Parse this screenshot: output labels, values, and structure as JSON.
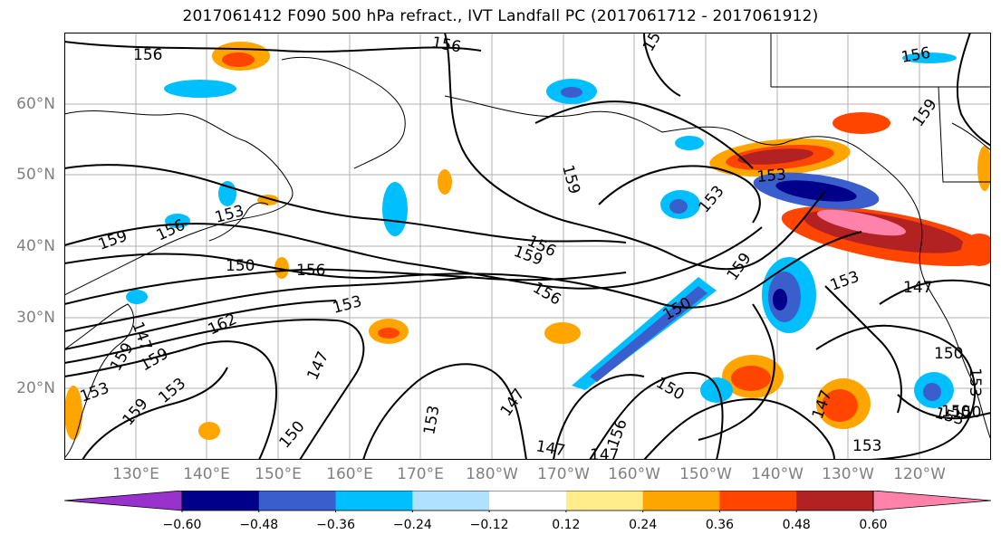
{
  "title": "2017061412 F090 500 hPa refract., IVT Landfall PC (2017061712 - 2017061912)",
  "lat_labels": [
    "60°N",
    "50°N",
    "40°N",
    "30°N",
    "20°N"
  ],
  "lon_labels": [
    "130°E",
    "140°E",
    "150°E",
    "160°E",
    "170°E",
    "180°W",
    "170°W",
    "160°W",
    "150°W",
    "140°W",
    "130°W",
    "120°W"
  ],
  "contour_labels": [
    "156",
    "156",
    "159",
    "159",
    "159",
    "156",
    "159",
    "153",
    "153",
    "156",
    "150",
    "156",
    "153",
    "162",
    "159",
    "147",
    "147",
    "159",
    "156",
    "150",
    "153",
    "153",
    "159",
    "147",
    "153",
    "147",
    "150",
    "153",
    "150",
    "147",
    "153",
    "150",
    "153",
    "159",
    "150",
    "147",
    "156",
    "153",
    "150",
    "147",
    "153",
    "156",
    "159"
  ],
  "colorbar": {
    "colors": [
      "#9932CC",
      "#00008B",
      "#3A5FCD",
      "#00BFFF",
      "#B0E2FF",
      "#FFFFFF",
      "#FFEC8B",
      "#FFA500",
      "#FF4500",
      "#B22222",
      "#FF82AB"
    ],
    "tick_labels": [
      "−0.60",
      "−0.48",
      "−0.36",
      "−0.24",
      "−0.12",
      "0.12",
      "0.24",
      "0.36",
      "0.48",
      "0.60"
    ]
  }
}
